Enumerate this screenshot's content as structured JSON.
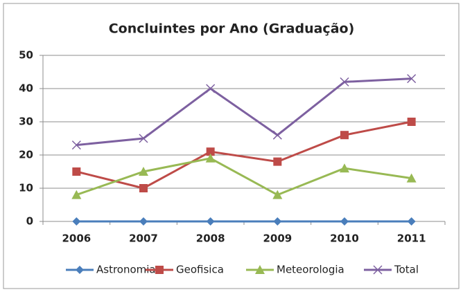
{
  "chart_data": {
    "type": "line",
    "title": "Concluintes por Ano (Graduação)",
    "categories": [
      "2006",
      "2007",
      "2008",
      "2009",
      "2010",
      "2011"
    ],
    "series": [
      {
        "name": "Astronomia",
        "color": "#4a7ebb",
        "marker": "diamond",
        "values": [
          0,
          0,
          0,
          0,
          0,
          0
        ]
      },
      {
        "name": "Geofisica",
        "color": "#be4b48",
        "marker": "square",
        "values": [
          15,
          10,
          21,
          18,
          26,
          30
        ]
      },
      {
        "name": "Meteorologia",
        "color": "#98b954",
        "marker": "triangle",
        "values": [
          8,
          15,
          19,
          8,
          16,
          13
        ]
      },
      {
        "name": "Total",
        "color": "#7d60a0",
        "marker": "x",
        "values": [
          23,
          25,
          40,
          26,
          42,
          43
        ]
      }
    ],
    "ylim": [
      0,
      50
    ],
    "yticks": [
      0,
      10,
      20,
      30,
      40,
      50
    ],
    "grid": true,
    "legend": "bottom"
  }
}
